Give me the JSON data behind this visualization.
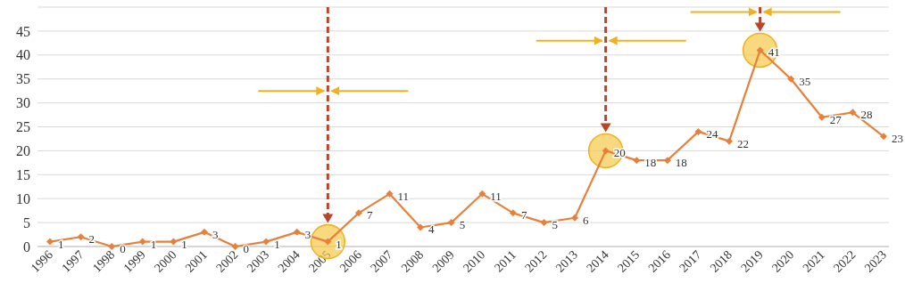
{
  "chart_data": {
    "type": "line",
    "categories": [
      "1996",
      "1997",
      "1998",
      "1999",
      "2000",
      "2001",
      "2002",
      "2003",
      "2004",
      "2005",
      "2006",
      "2007",
      "2008",
      "2009",
      "2010",
      "2011",
      "2012",
      "2013",
      "2014",
      "2015",
      "2016",
      "2017",
      "2018",
      "2019",
      "2020",
      "2021",
      "2022",
      "2023"
    ],
    "series": [
      {
        "color": "#e8803a",
        "values": [
          1,
          2,
          0,
          1,
          1,
          3,
          0,
          1,
          3,
          1,
          7,
          11,
          4,
          5,
          11,
          7,
          5,
          6,
          20,
          18,
          18,
          24,
          22,
          41,
          35,
          27,
          28,
          23
        ]
      }
    ],
    "ylim": [
      0,
      50
    ],
    "yticks": [
      0,
      5,
      10,
      15,
      20,
      25,
      30,
      35,
      40,
      45,
      {
        "value": 50,
        "label": null
      }
    ],
    "grid": "y",
    "marker": "diamond",
    "line_style": "solid",
    "data_labels": true
  }
}
